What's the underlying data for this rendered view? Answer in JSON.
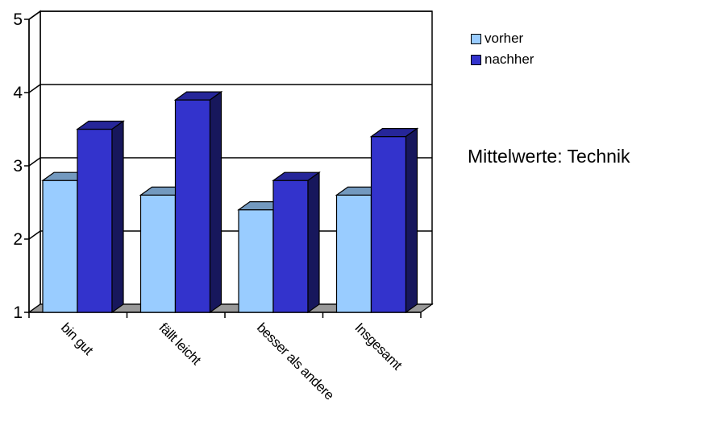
{
  "chart_data": {
    "type": "bar",
    "style": "3d-clustered-column",
    "title": "Mittelwerte: Technik",
    "xlabel": "",
    "ylabel": "",
    "categories": [
      "bin gut",
      "fällt leicht",
      "besser als andere",
      "Insgesamt"
    ],
    "series": [
      {
        "name": "vorher",
        "values": [
          2.8,
          2.6,
          2.4,
          2.6
        ],
        "color": "#99ccff"
      },
      {
        "name": "nachher",
        "values": [
          3.5,
          3.9,
          2.8,
          3.4
        ],
        "color": "#3333cc"
      }
    ],
    "ylim": [
      1,
      5
    ],
    "yticks": [
      "1",
      "2",
      "3",
      "4",
      "5"
    ],
    "grid": true,
    "legend": "top-right"
  }
}
